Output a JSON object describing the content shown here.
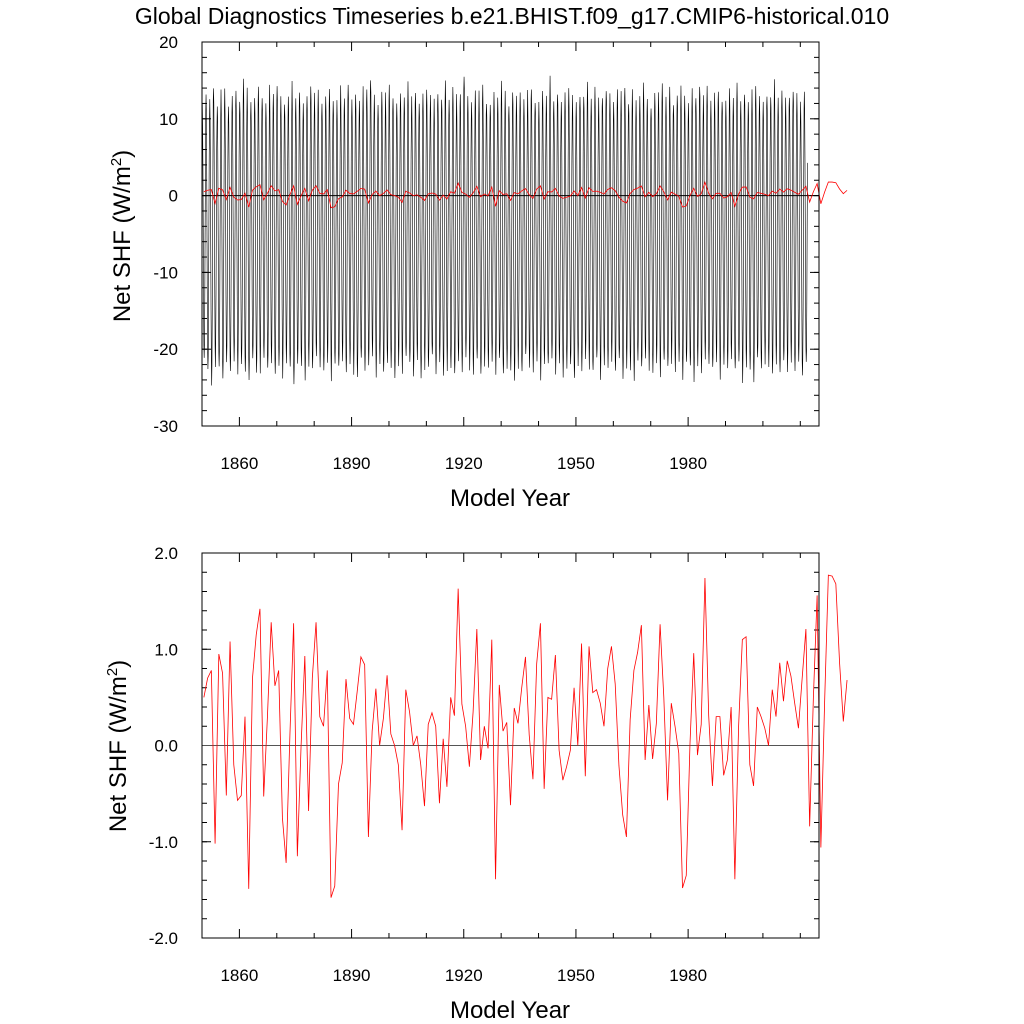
{
  "figure_title": "Global Diagnostics Timeseries b.e21.BHIST.f09_g17.CMIP6-historical.010",
  "chart_data": [
    {
      "type": "line",
      "title": "Global Diagnostics Timeseries b.e21.BHIST.f09_g17.CMIP6-historical.010",
      "xlabel": "Model Year",
      "ylabel_main": "Net SHF (W/m",
      "ylabel_sup": "2",
      "ylabel_close": ")",
      "xlim": [
        1850,
        2015
      ],
      "ylim": [
        -30,
        20
      ],
      "xticks": [
        1860,
        1890,
        1920,
        1950,
        1980
      ],
      "xtick_labels": [
        "1860",
        "1890",
        "1920",
        "1950",
        "1980"
      ],
      "yticks": [
        20,
        10,
        0,
        -10,
        -20,
        -30
      ],
      "ytick_labels": [
        "20",
        "10",
        "0",
        "-10",
        "-20",
        "-30"
      ],
      "reference_line": 0,
      "series": [
        {
          "color": "#000000",
          "kind": "monthly",
          "seasonal_envelope": {
            "min_typical": -22,
            "max_typical": 12
          },
          "annual_max": [
            12.5,
            14,
            13,
            15,
            12.5,
            13.8,
            14.2,
            12.4,
            13.6,
            14.5,
            13.2,
            15.5,
            14.1,
            12.9,
            13.5,
            14.8,
            13.7,
            12.5,
            14.2,
            13.9,
            15.2,
            13.3,
            12.8,
            13.6,
            14.7,
            13.1,
            14.4,
            12.6,
            13.8,
            15.1,
            13.4,
            14,
            12.9,
            13.7,
            14.6,
            13.2,
            12.7,
            14.3,
            13.5,
            15.4,
            13,
            14.1,
            12.8,
            13.9,
            14.5,
            16.1,
            13.6,
            12.6,
            14.2,
            13.3,
            14.9,
            13.8,
            12.7,
            14,
            13.5,
            15,
            13.1,
            14.4,
            12.9,
            13.8,
            14.6,
            13.4,
            12.5,
            14.1,
            13.6,
            15.3,
            13.2,
            14.7,
            13,
            13.9,
            16.7,
            13.5,
            12.8,
            14.3,
            13.7,
            14.9,
            13.1,
            12.6,
            14,
            13.4,
            15.2,
            13.8,
            12.7,
            14.5,
            13.3,
            14.1,
            12.9,
            13.6,
            14.8,
            13.2,
            12.5,
            14.2,
            13.5,
            15.6,
            13,
            14.4,
            12.8,
            13.9,
            14.6,
            13.3,
            12.6,
            14.1,
            13.7,
            15.1,
            13.2,
            14.5,
            12.9,
            13.8,
            14.7,
            13.4,
            12.7,
            14.3,
            13.6,
            15,
            13.1,
            14.2,
            12.8,
            13.5,
            14.9,
            13.3,
            12.6,
            14,
            13.7,
            15.2,
            13.2,
            14.6,
            13,
            13.9,
            14.4,
            13.5,
            12.5,
            14.1,
            13.8,
            15.3,
            13.1,
            14.7,
            12.9,
            13.6,
            14.5,
            13.4,
            12.7,
            14.2,
            13.3,
            15.1,
            13,
            14.4,
            12.8,
            13.9,
            14.8,
            13.5,
            12.6,
            14.1,
            13.7,
            15,
            13.2,
            14.3,
            13,
            13.8,
            14.6,
            13.4,
            12.5,
            14.2,
            13.6,
            14.9,
            13.1
          ],
          "annual_min": [
            -22,
            -23.5,
            -24.8,
            -22.5,
            -23.1,
            -24.6,
            -22.4,
            -23.8,
            -21.9,
            -23.2,
            -22.7,
            -23.9,
            -24.5,
            -22.1,
            -23.6,
            -22.8,
            -21.7,
            -23.4,
            -22.3,
            -24.1,
            -22.9,
            -23.7,
            -22.2,
            -23.3,
            -25.3,
            -22.6,
            -23,
            -24.2,
            -22.4,
            -23.5,
            -21.8,
            -22.9,
            -23.6,
            -22.1,
            -24,
            -22.7,
            -23.2,
            -21.9,
            -23.8,
            -22.5,
            -23.1,
            -24.3,
            -22.2,
            -23.4,
            -22.8,
            -21.6,
            -23.7,
            -22.3,
            -24.1,
            -22.6,
            -23,
            -24.5,
            -22.4,
            -23.3,
            -21.9,
            -22.7,
            -23.9,
            -22.1,
            -24.2,
            -22.5,
            -23.2,
            -21.8,
            -23.6,
            -22.3,
            -24,
            -22.8,
            -23.1,
            -24.4,
            -22.2,
            -23.5,
            -21.7,
            -22.9,
            -23.7,
            -22.4,
            -24.1,
            -22.6,
            -23,
            -21.9,
            -23.4,
            -22.2,
            -24.3,
            -22.7,
            -23.3,
            -24.6,
            -22.5,
            -23.8,
            -21.8,
            -22.8,
            -23.5,
            -22.1,
            -24.2,
            -22.6,
            -23.1,
            -21.9,
            -23.6,
            -22.4,
            -24,
            -22.9,
            -23.2,
            -24.7,
            -22.3,
            -23.4,
            -21.7,
            -22.7,
            -23.8,
            -22.2,
            -24.1,
            -22.5,
            -23,
            -21.8,
            -23.7,
            -22.4,
            -24.3,
            -22.8,
            -23.3,
            -24.5,
            -22.1,
            -23.5,
            -21.9,
            -22.9,
            -23.6,
            -22.3,
            -24,
            -22.6,
            -23.1,
            -21.8,
            -23.4,
            -22.2,
            -24.2,
            -22.7,
            -23.2,
            -24.4,
            -22.5,
            -23.8,
            -21.7,
            -22.8,
            -23.5,
            -22.1,
            -24.1,
            -22.6,
            -23,
            -21.9,
            -23.7,
            -22.3,
            -24.3,
            -22.9,
            -23.3,
            -24.6,
            -22.2,
            -23.4,
            -21.8,
            -22.7,
            -23.9,
            -22.4,
            -24,
            -22.5,
            -23.1,
            -21.9,
            -23.6,
            -22.2,
            -24.2,
            -22.8
          ]
        },
        {
          "color": "#ff0000",
          "kind": "annual",
          "ref": "annual_mean"
        }
      ]
    },
    {
      "type": "line",
      "xlabel": "Model Year",
      "ylabel_main": "Net SHF (W/m",
      "ylabel_sup": "2",
      "ylabel_close": ")",
      "xlim": [
        1850,
        2015
      ],
      "ylim": [
        -2,
        2
      ],
      "xticks": [
        1860,
        1890,
        1920,
        1950,
        1980
      ],
      "xtick_labels": [
        "1860",
        "1890",
        "1920",
        "1950",
        "1980"
      ],
      "yticks": [
        2,
        1,
        0,
        -1,
        -2
      ],
      "ytick_labels": [
        "2.0",
        "1.0",
        "0.0",
        "-1.0",
        "-2.0"
      ],
      "reference_line": 0,
      "series": [
        {
          "color": "#ff0000",
          "kind": "annual",
          "x_start": 1850,
          "values": [
            0.5,
            0.7,
            0.78,
            -1.02,
            0.95,
            0.75,
            -0.52,
            1.08,
            -0.2,
            -0.57,
            -0.52,
            0.3,
            -1.49,
            0.7,
            1.15,
            1.42,
            -0.53,
            0.3,
            1.28,
            0.62,
            0.78,
            -0.75,
            -1.22,
            0.1,
            1.27,
            -1.15,
            0.0,
            0.93,
            -0.68,
            0.7,
            1.28,
            0.3,
            0.2,
            0.78,
            -1.58,
            -1.46,
            -0.4,
            -0.18,
            0.69,
            0.28,
            0.22,
            0.56,
            0.92,
            0.84,
            -0.95,
            0.15,
            0.59,
            0.0,
            0.28,
            0.73,
            0.12,
            0.0,
            -0.2,
            -0.88,
            0.58,
            0.35,
            0.0,
            0.1,
            -0.2,
            -0.63,
            0.22,
            0.34,
            0.2,
            -0.6,
            0.07,
            -0.43,
            0.5,
            0.31,
            1.63,
            0.43,
            0.2,
            -0.22,
            0.35,
            1.21,
            -0.15,
            0.2,
            -0.03,
            1.1,
            -1.39,
            0.63,
            0.15,
            0.24,
            -0.62,
            0.39,
            0.23,
            0.6,
            0.92,
            0.11,
            -0.35,
            0.85,
            1.27,
            -0.45,
            0.5,
            0.48,
            0.94,
            -0.05,
            -0.36,
            -0.22,
            -0.05,
            0.6,
            0.0,
            1.06,
            -0.32,
            1.03,
            0.55,
            0.58,
            0.44,
            0.2,
            0.8,
            1.03,
            0.64,
            -0.21,
            -0.72,
            -0.95,
            0.27,
            0.78,
            0.97,
            1.25,
            -0.15,
            0.42,
            -0.14,
            0.23,
            1.26,
            0.5,
            -0.57,
            0.44,
            0.2,
            -0.08,
            -1.48,
            -1.35,
            0.02,
            0.96,
            -0.1,
            0.22,
            1.74,
            0.31,
            -0.42,
            0.3,
            0.3,
            -0.31,
            -0.15,
            0.4,
            -1.39,
            0.2,
            1.1,
            1.13,
            -0.2,
            -0.42,
            0.4,
            0.3,
            0.18,
            0.0,
            0.58,
            0.3,
            0.86,
            0.46,
            0.88,
            0.72,
            0.44,
            0.18,
            0.7,
            1.21,
            -0.84,
            0.5,
            1.56,
            -1.06,
            0.45,
            1.77,
            1.76,
            1.68,
            0.86,
            0.25,
            0.68
          ]
        }
      ]
    }
  ]
}
